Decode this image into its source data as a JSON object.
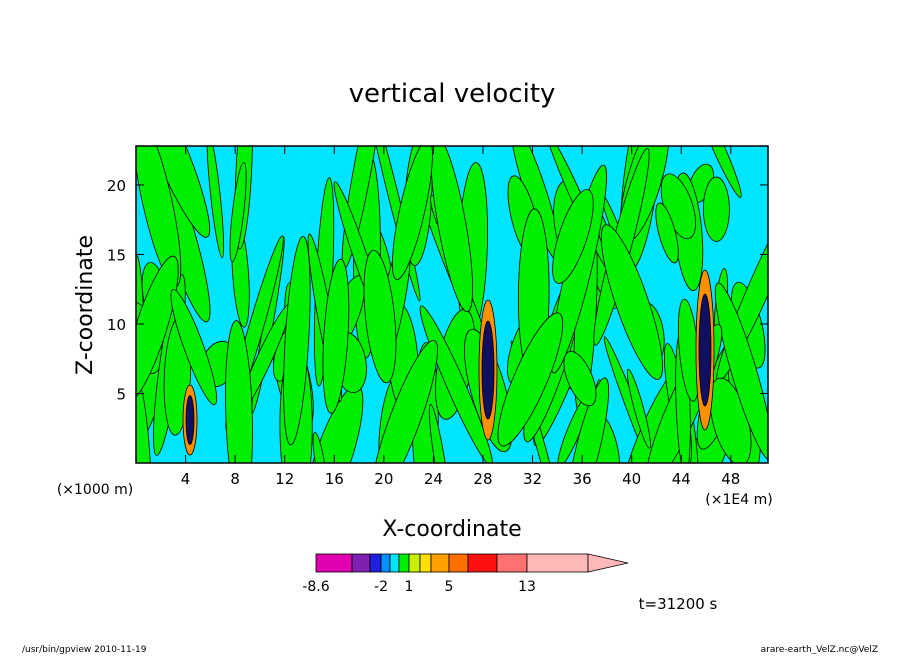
{
  "chart_data": {
    "type": "contour",
    "title": "vertical velocity",
    "x_label": "X-coordinate",
    "y_label": "Z-coordinate",
    "x_unit_left": "(×1000 m)",
    "x_unit_right": "(×1E4 m)",
    "xlim": [
      0,
      51
    ],
    "xticks": [
      4,
      8,
      12,
      16,
      20,
      24,
      28,
      32,
      36,
      40,
      44,
      48
    ],
    "ylim": [
      0,
      22.8
    ],
    "yticks": [
      5,
      10,
      15,
      20
    ],
    "colorbar_ticks": [
      -8.6,
      -2,
      1,
      5,
      13
    ],
    "time_label": "t=31200 s",
    "footer_left": "/usr/bin/gpview   2010-11-19",
    "footer_right": "arare-earth_VelZ.nc@VelZ"
  }
}
